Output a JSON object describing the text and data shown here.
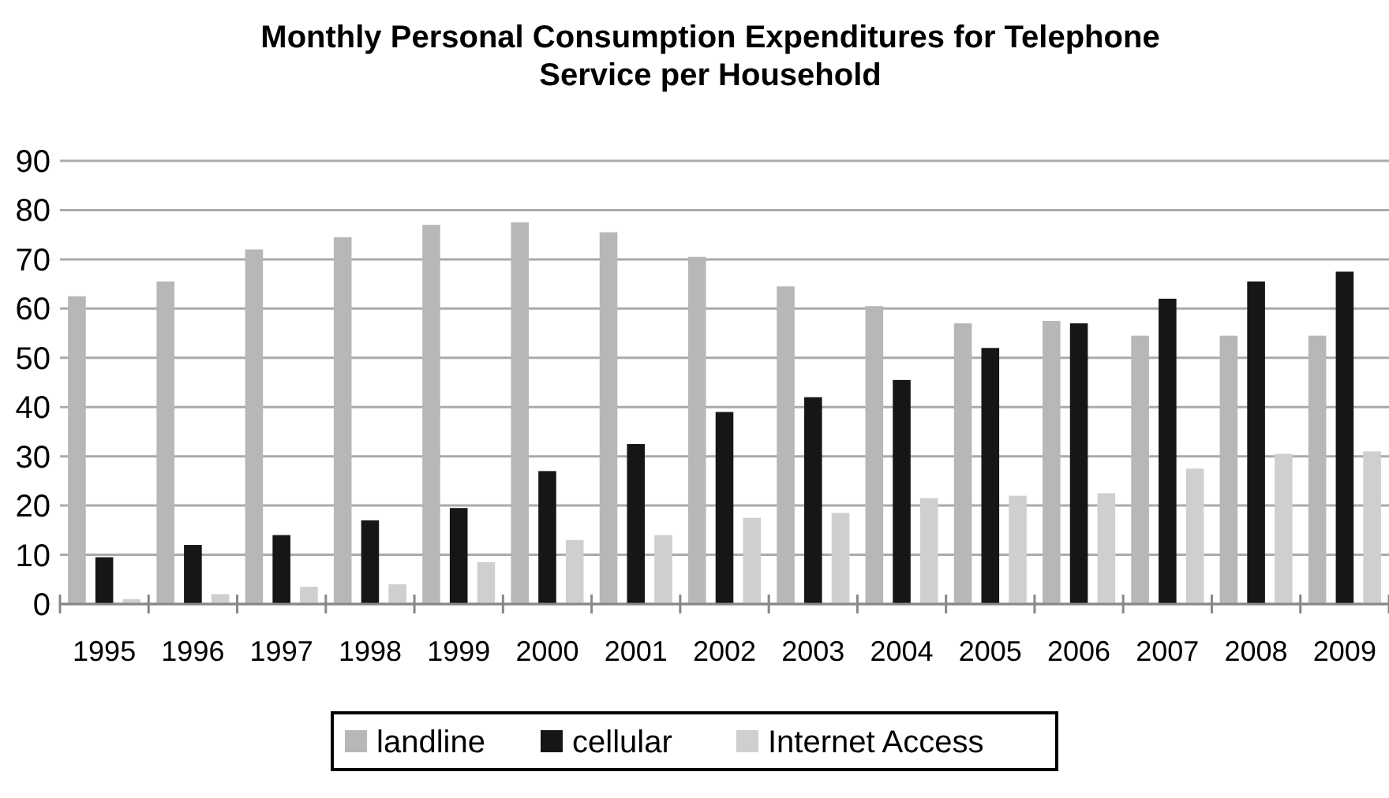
{
  "chart_data": {
    "type": "bar",
    "title": "Monthly Personal Consumption Expenditures for Telephone Service per Household",
    "categories": [
      "1995",
      "1996",
      "1997",
      "1998",
      "1999",
      "2000",
      "2001",
      "2002",
      "2003",
      "2004",
      "2005",
      "2006",
      "2007",
      "2008",
      "2009"
    ],
    "series": [
      {
        "name": "landline",
        "color": "#b7b7b7",
        "values": [
          62.5,
          65.5,
          72,
          74.5,
          77,
          77.5,
          75.5,
          70.5,
          64.5,
          60.5,
          57,
          57.5,
          54.5,
          54.5,
          54.5
        ]
      },
      {
        "name": "cellular",
        "color": "#161616",
        "values": [
          9.5,
          12,
          14,
          17,
          19.5,
          27,
          32.5,
          39,
          42,
          45.5,
          52,
          57,
          62,
          65.5,
          67.5
        ]
      },
      {
        "name": "Internet Access",
        "color": "#cfcfcf",
        "values": [
          1,
          2,
          3.5,
          4,
          8.5,
          13,
          14,
          17.5,
          18.5,
          21.5,
          22,
          22.5,
          27.5,
          30.5,
          31
        ]
      }
    ],
    "ylim": [
      0,
      90
    ],
    "yticks": [
      0,
      10,
      20,
      30,
      40,
      50,
      60,
      70,
      80,
      90
    ],
    "grid": "y",
    "legend": "bottom"
  }
}
